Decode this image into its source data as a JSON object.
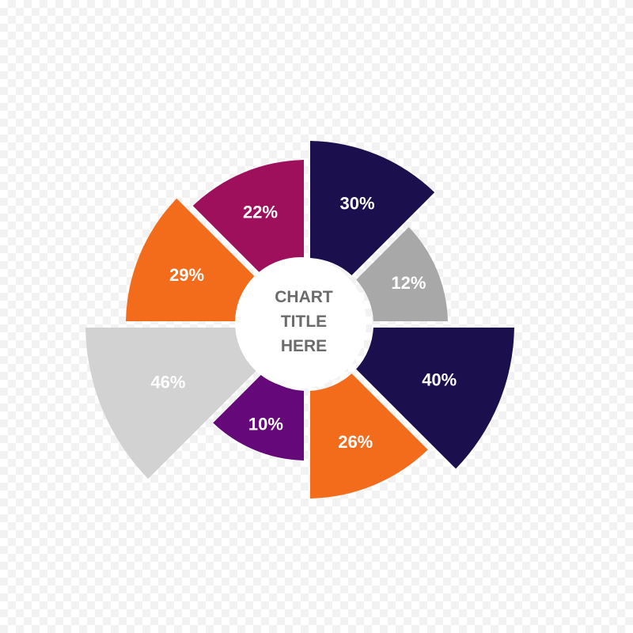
{
  "chart_data": {
    "type": "pie",
    "title_lines": [
      "CHART",
      "TITLE",
      "HERE"
    ],
    "slices": [
      {
        "label": "30%",
        "value": 30,
        "color": "#1c0f4d"
      },
      {
        "label": "12%",
        "value": 12,
        "color": "#a8a8a8"
      },
      {
        "label": "40%",
        "value": 40,
        "color": "#1c0f4d"
      },
      {
        "label": "26%",
        "value": 26,
        "color": "#f26c1c"
      },
      {
        "label": "10%",
        "value": 10,
        "color": "#65087a"
      },
      {
        "label": "46%",
        "value": 46,
        "color": "#d2d2d2"
      },
      {
        "label": "29%",
        "value": 29,
        "color": "#f26c1c"
      },
      {
        "label": "22%",
        "value": 22,
        "color": "#9e0f5c"
      }
    ]
  }
}
